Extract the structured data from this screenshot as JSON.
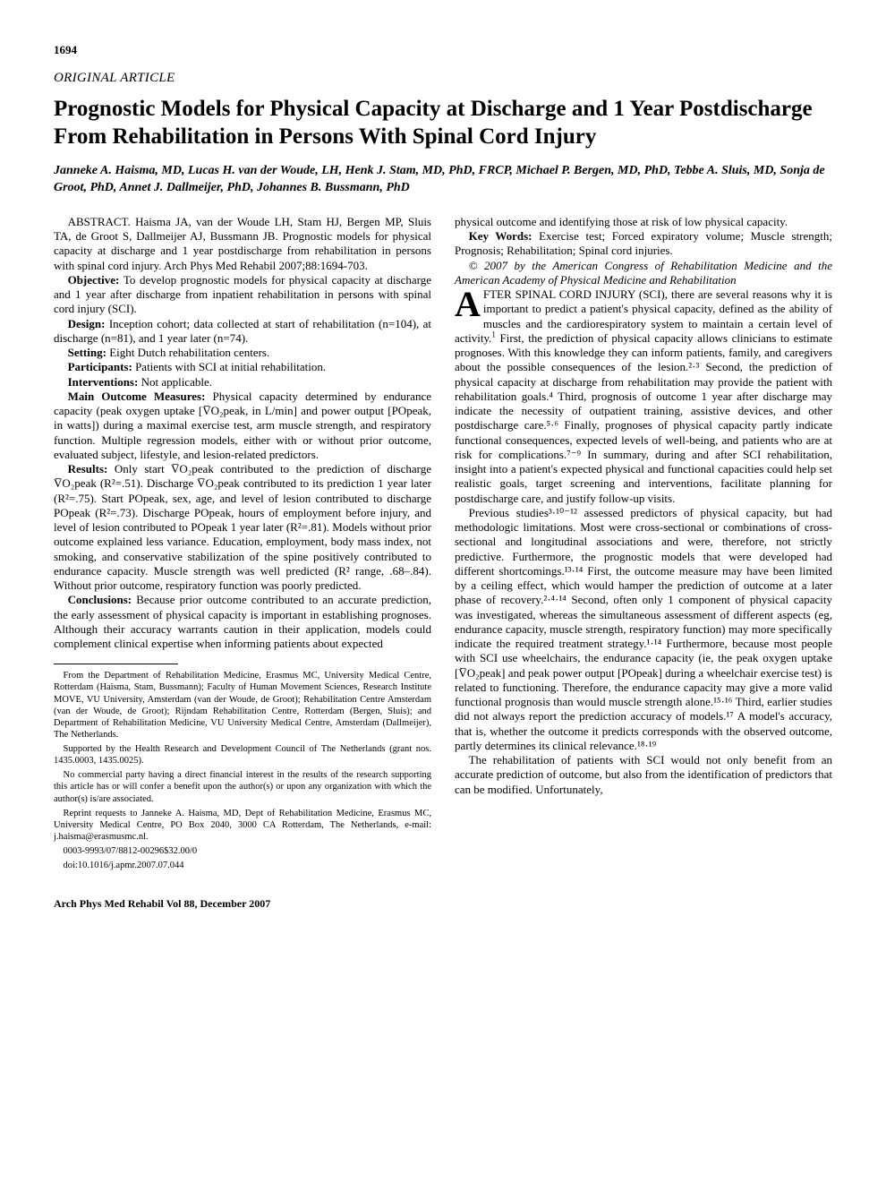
{
  "pageNumber": "1694",
  "sectionLabel": "ORIGINAL ARTICLE",
  "title": "Prognostic Models for Physical Capacity at Discharge and 1 Year Postdischarge From Rehabilitation in Persons With Spinal Cord Injury",
  "authors": "Janneke A. Haisma, MD, Lucas H. van der Woude, LH, Henk J. Stam, MD, PhD, FRCP, Michael P. Bergen, MD, PhD, Tebbe A. Sluis, MD, Sonja de Groot, PhD, Annet J. Dallmeijer, PhD, Johannes B. Bussmann, PhD",
  "abstractCitation": "ABSTRACT. Haisma JA, van der Woude LH, Stam HJ, Bergen MP, Sluis TA, de Groot S, Dallmeijer AJ, Bussmann JB. Prognostic models for physical capacity at discharge and 1 year postdischarge from rehabilitation in persons with spinal cord injury. Arch Phys Med Rehabil 2007;88:1694-703.",
  "abstract": {
    "objective": "To develop prognostic models for physical capacity at discharge and 1 year after discharge from inpatient rehabilitation in persons with spinal cord injury (SCI).",
    "design": "Inception cohort; data collected at start of rehabilitation (n=104), at discharge (n=81), and 1 year later (n=74).",
    "setting": "Eight Dutch rehabilitation centers.",
    "participants": "Patients with SCI at initial rehabilitation.",
    "interventions": "Not applicable.",
    "outcomeMeasures": "Physical capacity determined by endurance capacity (peak oxygen uptake [V̅O₂peak, in L/min] and power output [POpeak, in watts]) during a maximal exercise test, arm muscle strength, and respiratory function. Multiple regression models, either with or without prior outcome, evaluated subject, lifestyle, and lesion-related predictors.",
    "results": "Only start V̅O₂peak contributed to the prediction of discharge V̅O₂peak (R²=.51). Discharge V̅O₂peak contributed to its prediction 1 year later (R²=.75). Start POpeak, sex, age, and level of lesion contributed to discharge POpeak (R²=.73). Discharge POpeak, hours of employment before injury, and level of lesion contributed to POpeak 1 year later (R²=.81). Models without prior outcome explained less variance. Education, employment, body mass index, not smoking, and conservative stabilization of the spine positively contributed to endurance capacity. Muscle strength was well predicted (R² range, .68–.84). Without prior outcome, respiratory function was poorly predicted.",
    "conclusions": "Because prior outcome contributed to an accurate prediction, the early assessment of physical capacity is important in establishing prognoses. Although their accuracy warrants caution in their application, models could complement clinical expertise when informing patients about expected"
  },
  "col2Lead": "physical outcome and identifying those at risk of low physical capacity.",
  "keywordsLabel": "Key Words:",
  "keywords": "Exercise test; Forced expiratory volume; Muscle strength; Prognosis; Rehabilitation; Spinal cord injuries.",
  "copyright": "© 2007 by the American Congress of Rehabilitation Medicine and the American Academy of Physical Medicine and Rehabilitation",
  "bodyDropFirst": "A",
  "bodyDropRest": "FTER SPINAL CORD INJURY (SCI), there are several reasons why it is important to predict a patient's physical capacity, defined as the ability of muscles and the cardiorespiratory system to maintain a certain level of activity.",
  "bodyP1rest": " First, the prediction of physical capacity allows clinicians to estimate prognoses. With this knowledge they can inform patients, family, and caregivers about the possible consequences of the lesion.²·³ Second, the prediction of physical capacity at discharge from rehabilitation may provide the patient with rehabilitation goals.⁴ Third, prognosis of outcome 1 year after discharge may indicate the necessity of outpatient training, assistive devices, and other postdischarge care.⁵·⁶ Finally, prognoses of physical capacity partly indicate functional consequences, expected levels of well-being, and patients who are at risk for complications.⁷⁻⁹ In summary, during and after SCI rehabilitation, insight into a patient's expected physical and functional capacities could help set realistic goals, target screening and interventions, facilitate planning for postdischarge care, and justify follow-up visits.",
  "bodyP2": "Previous studies³·¹⁰⁻¹² assessed predictors of physical capacity, but had methodologic limitations. Most were cross-sectional or combinations of cross-sectional and longitudinal associations and were, therefore, not strictly predictive. Furthermore, the prognostic models that were developed had different shortcomings.¹³·¹⁴ First, the outcome measure may have been limited by a ceiling effect, which would hamper the prediction of outcome at a later phase of recovery.²·⁴·¹⁴ Second, often only 1 component of physical capacity was investigated, whereas the simultaneous assessment of different aspects (eg, endurance capacity, muscle strength, respiratory function) may more specifically indicate the required treatment strategy.¹·¹⁴ Furthermore, because most people with SCI use wheelchairs, the endurance capacity (ie, the peak oxygen uptake [V̅O₂peak] and peak power output [POpeak] during a wheelchair exercise test) is related to functioning. Therefore, the endurance capacity may give a more valid functional prognosis than would muscle strength alone.¹⁵·¹⁶ Third, earlier studies did not always report the prediction accuracy of models.¹⁷ A model's accuracy, that is, whether the outcome it predicts corresponds with the observed outcome, partly determines its clinical relevance.¹⁸·¹⁹",
  "bodyP3": "The rehabilitation of patients with SCI would not only benefit from an accurate prediction of outcome, but also from the identification of predictors that can be modified. Unfortunately,",
  "footnotes": {
    "affil": "From the Department of Rehabilitation Medicine, Erasmus MC, University Medical Centre, Rotterdam (Haisma, Stam, Bussmann); Faculty of Human Movement Sciences, Research Institute MOVE, VU University, Amsterdam (van der Woude, de Groot); Rehabilitation Centre Amsterdam (van der Woude, de Groot); Rijndam Rehabilitation Centre, Rotterdam (Bergen, Sluis); and Department of Rehabilitation Medicine, VU University Medical Centre, Amsterdam (Dallmeijer), The Netherlands.",
    "support": "Supported by the Health Research and Development Council of The Netherlands (grant nos. 1435.0003, 1435.0025).",
    "coi": "No commercial party having a direct financial interest in the results of the research supporting this article has or will confer a benefit upon the author(s) or upon any organization with which the author(s) is/are associated.",
    "reprint": "Reprint requests to Janneke A. Haisma, MD, Dept of Rehabilitation Medicine, Erasmus MC, University Medical Centre, PO Box 2040, 3000 CA Rotterdam, The Netherlands, e-mail: j.haisma@erasmusmc.nl.",
    "issn": "0003-9993/07/8812-00296$32.00/0",
    "doi": "doi:10.1016/j.apmr.2007.07.044"
  },
  "footer": "Arch Phys Med Rehabil Vol 88, December 2007"
}
